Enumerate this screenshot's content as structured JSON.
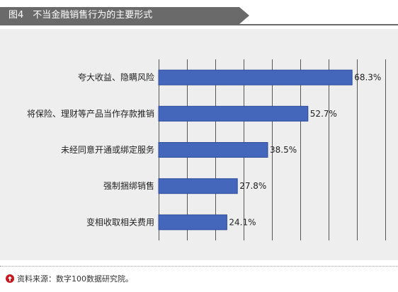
{
  "title": "图4　不当金融销售行为的主要形式",
  "source_icon": "up-arrow-circle-icon",
  "source_text": "资料来源：数字100数据研究院。",
  "colors": {
    "bar": "#4466bb",
    "bar_stroke": "#2c4c99",
    "grid": "#555555",
    "text": "#222222",
    "background": "#eeeeee",
    "title_bg": "#6a6a6a",
    "icon": "#c8161d"
  },
  "chart_data": {
    "type": "bar",
    "orientation": "horizontal",
    "title": "图4　不当金融销售行为的主要形式",
    "categories": [
      "夸大收益、隐瞒风险",
      "将保险、理财等产品当作存款推销",
      "未经同意开通或绑定服务",
      "强制捆绑销售",
      "变相收取相关费用"
    ],
    "values": [
      68.3,
      52.7,
      38.5,
      27.8,
      24.1
    ],
    "value_labels": [
      "68.3%",
      "52.7%",
      "38.5%",
      "27.8%",
      "24.1%"
    ],
    "xlim": [
      0,
      80
    ],
    "grid": true,
    "legend": false,
    "xlabel": "",
    "ylabel": ""
  }
}
